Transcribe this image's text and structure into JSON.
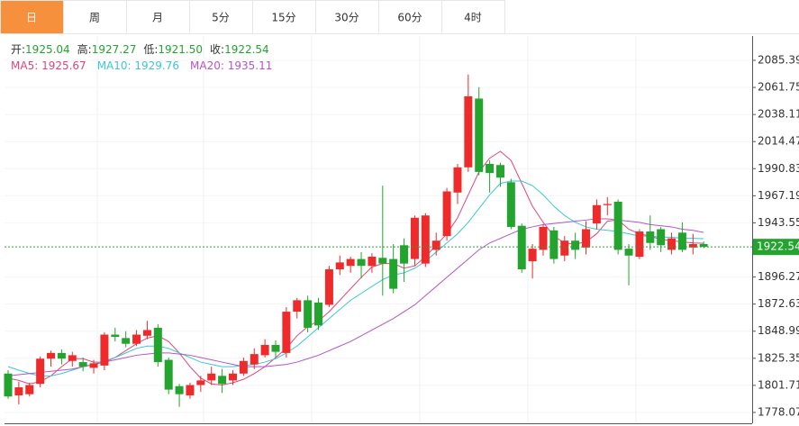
{
  "tabs": [
    "日",
    "周",
    "月",
    "5分",
    "15分",
    "30分",
    "60分",
    "4时"
  ],
  "active_tab": 0,
  "chart_data": {
    "type": "candlestick",
    "up_color": "#ee2a2a",
    "down_color": "#23a42f",
    "info": [
      {
        "label": "开:",
        "value": 1925.04
      },
      {
        "label": "高:",
        "value": 1927.27
      },
      {
        "label": "低:",
        "value": 1921.5,
        "value_label": "1921.50"
      },
      {
        "label": "收:",
        "value": 1922.54
      }
    ],
    "open": [
      1812,
      1793,
      1794,
      1803,
      1825,
      1830,
      1823,
      1822,
      1817,
      1819,
      1846,
      1843,
      1838,
      1845,
      1852,
      1824,
      1801,
      1793,
      1802,
      1806,
      1810,
      1806,
      1812,
      1820,
      1828,
      1837,
      1830,
      1866,
      1876,
      1874,
      1872,
      1903,
      1906,
      1912,
      1906,
      1913,
      1912,
      1924,
      1912,
      1908,
      1920,
      1932,
      1970,
      1992,
      2052,
      1995,
      1994,
      1979,
      1941,
      1910,
      1920,
      1937,
      1915,
      1928,
      1922,
      1943,
      1959,
      1962,
      1921,
      1914,
      1936,
      1938,
      1920,
      1935,
      1922,
      1925.04
    ],
    "high": [
      1815,
      1805,
      1804,
      1827,
      1832,
      1833,
      1831,
      1826,
      1824,
      1848,
      1852,
      1849,
      1850,
      1858,
      1855,
      1826,
      1803,
      1804,
      1810,
      1818,
      1816,
      1815,
      1826,
      1834,
      1842,
      1841,
      1870,
      1878,
      1880,
      1878,
      1906,
      1915,
      1914,
      1918,
      1917,
      1976,
      1925,
      1930,
      1950,
      1952,
      1935,
      1974,
      1995,
      2073,
      2062,
      1998,
      1996,
      1982,
      1943,
      1925,
      1942,
      1940,
      1932,
      1935,
      1945,
      1964,
      1966,
      1964,
      1925,
      1938,
      1950,
      1940,
      1935,
      1944,
      1934,
      1927.27
    ],
    "low": [
      1790,
      1785,
      1792,
      1800,
      1818,
      1820,
      1818,
      1814,
      1812,
      1815,
      1840,
      1835,
      1836,
      1842,
      1818,
      1794,
      1783,
      1790,
      1796,
      1802,
      1795,
      1802,
      1810,
      1816,
      1826,
      1826,
      1826,
      1860,
      1848,
      1850,
      1870,
      1898,
      1900,
      1895,
      1900,
      1880,
      1882,
      1892,
      1906,
      1905,
      1915,
      1928,
      1960,
      1988,
      1985,
      1970,
      1975,
      1938,
      1900,
      1895,
      1915,
      1908,
      1910,
      1912,
      1916,
      1938,
      1950,
      1916,
      1889,
      1912,
      1920,
      1918,
      1916,
      1918,
      1916,
      1921.5
    ],
    "close": [
      1792,
      1800,
      1802,
      1825,
      1830,
      1825,
      1828,
      1818,
      1821,
      1846,
      1844,
      1838,
      1846,
      1850,
      1822,
      1798,
      1794,
      1802,
      1806,
      1812,
      1803,
      1812,
      1823,
      1829,
      1837,
      1831,
      1866,
      1876,
      1852,
      1854,
      1903,
      1909,
      1912,
      1906,
      1914,
      1908,
      1886,
      1908,
      1948,
      1950,
      1928,
      1971,
      1992,
      2054,
      1988,
      1987,
      1983,
      1940,
      1903,
      1921,
      1940,
      1912,
      1928,
      1920,
      1938,
      1959,
      1960,
      1920,
      1915,
      1936,
      1926,
      1924,
      1930,
      1920,
      1925,
      1922.54
    ],
    "series": [
      {
        "name": "MA5",
        "color": "#e0457b",
        "value": 1925.67,
        "values": [
          1808,
          1806,
          1803,
          1805,
          1810,
          1818,
          1825,
          1825,
          1822,
          1822,
          1826,
          1832,
          1838,
          1843,
          1845,
          1840,
          1830,
          1818,
          1808,
          1803,
          1802,
          1804,
          1807,
          1812,
          1818,
          1826,
          1834,
          1845,
          1853,
          1858,
          1866,
          1876,
          1886,
          1896,
          1905,
          1908,
          1908,
          1904,
          1906,
          1914,
          1924,
          1934,
          1948,
          1968,
          1988,
          2000,
          2006,
          1998,
          1978,
          1958,
          1944,
          1932,
          1926,
          1925,
          1927,
          1934,
          1945,
          1946,
          1938,
          1934,
          1932,
          1929,
          1928,
          1927,
          1926,
          1925.67
        ]
      },
      {
        "name": "MA10",
        "color": "#3cc6d6",
        "value": 1929.76,
        "values": [
          1818,
          1815,
          1812,
          1810,
          1810,
          1812,
          1815,
          1818,
          1820,
          1823,
          1826,
          1830,
          1834,
          1836,
          1836,
          1834,
          1830,
          1826,
          1822,
          1820,
          1818,
          1818,
          1819,
          1820,
          1822,
          1825,
          1830,
          1836,
          1844,
          1852,
          1860,
          1868,
          1876,
          1882,
          1888,
          1894,
          1898,
          1900,
          1904,
          1910,
          1918,
          1926,
          1934,
          1944,
          1956,
          1968,
          1978,
          1980,
          1980,
          1976,
          1968,
          1958,
          1950,
          1944,
          1940,
          1938,
          1937,
          1936,
          1934,
          1932,
          1932,
          1931,
          1931,
          1930,
          1930,
          1929.76
        ]
      },
      {
        "name": "MA20",
        "color": "#b554c8",
        "value": 1935.11,
        "values": [
          1810,
          1811,
          1812,
          1813,
          1814,
          1815,
          1816,
          1818,
          1820,
          1822,
          1824,
          1826,
          1828,
          1829,
          1830,
          1830,
          1829,
          1828,
          1826,
          1824,
          1822,
          1820,
          1818,
          1818,
          1818,
          1819,
          1820,
          1822,
          1825,
          1828,
          1832,
          1836,
          1840,
          1845,
          1850,
          1855,
          1860,
          1866,
          1872,
          1880,
          1888,
          1896,
          1904,
          1912,
          1920,
          1926,
          1930,
          1934,
          1938,
          1940,
          1942,
          1943,
          1944,
          1945,
          1946,
          1947,
          1947,
          1946,
          1945,
          1944,
          1942,
          1941,
          1940,
          1938,
          1937,
          1935.11
        ]
      }
    ],
    "last_price": 1922.54,
    "last_price_color": "#23a42f",
    "ylim": [
      1768.6,
      2106.6
    ],
    "yticks": [
      2085.39,
      2061.75,
      2038.11,
      2014.47,
      1990.83,
      1967.19,
      1943.55,
      1896.27,
      1872.63,
      1848.99,
      1825.35,
      1801.71,
      1778.07
    ],
    "grid": true
  }
}
